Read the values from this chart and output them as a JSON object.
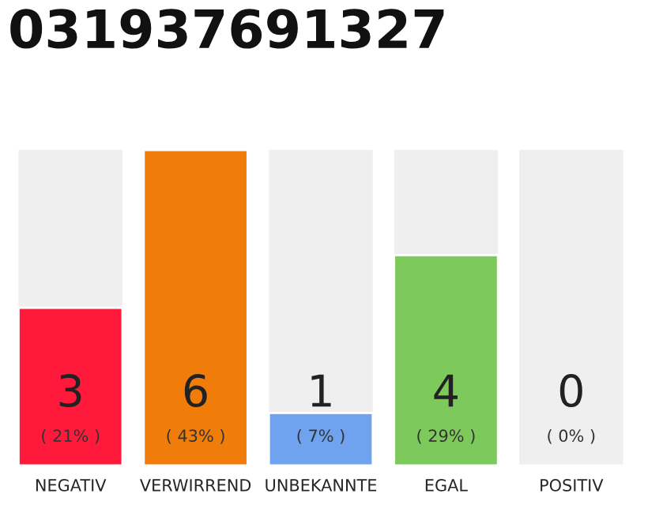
{
  "chart_data": {
    "type": "bar",
    "title": "031937691327",
    "categories": [
      "NEGATIV",
      "VERWIRREND",
      "UNBEKANNTE",
      "EGAL",
      "POSITIV"
    ],
    "values": [
      3,
      6,
      1,
      4,
      0
    ],
    "colors": [
      "#ff1a3c",
      "#f07d0a",
      "#6fa3ef",
      "#7dc95b",
      "#efefef"
    ],
    "data_labels": true,
    "annotations": [
      "( 21% )",
      "( 43% )",
      "( 7% )",
      "( 29% )",
      "( 0% )"
    ],
    "grid": false,
    "legend": false
  }
}
